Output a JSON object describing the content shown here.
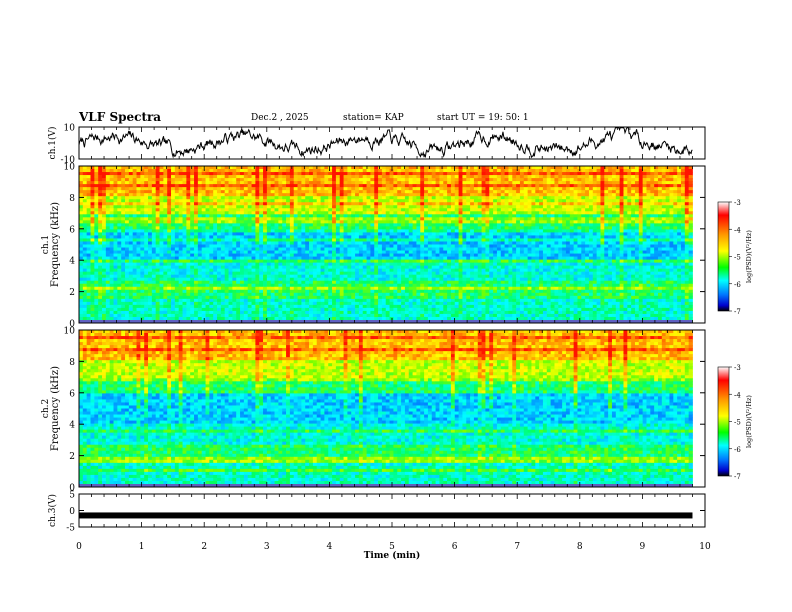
{
  "header": {
    "title": "VLF Spectra",
    "date": "Dec.2 , 2025",
    "station": "station= KAP",
    "start": "start  UT =   19: 50: 1"
  },
  "colorbar": {
    "label": "log(PSD)(V²/Hz)",
    "ticks": [
      "-3",
      "-4",
      "-5",
      "-6",
      "-7"
    ],
    "stops": [
      "#ff0000",
      "#ff8800",
      "#ffff00",
      "#00ff00",
      "#00ffff",
      "#0088ff",
      "#0000ff",
      "#000000"
    ]
  },
  "chart_data": [
    {
      "type": "line",
      "panel": "ch1-waveform",
      "ylabel": "ch.1(V)",
      "ylim": [
        -10,
        10
      ],
      "yticks": [
        "10",
        "-10"
      ],
      "xlim": [
        0,
        10
      ],
      "description_values": "noisy waveform oscillating roughly between -8 and 8 V over 0-9.8 min",
      "x_end": 9.8
    },
    {
      "type": "heatmap",
      "panel": "ch1-spectrogram",
      "ylabel": "ch.1 Frequency (kHz)",
      "ylim": [
        0,
        10
      ],
      "yticks": [
        "0",
        "2",
        "4",
        "6",
        "8",
        "10"
      ],
      "xlim": [
        0,
        10
      ],
      "x_end": 9.8,
      "clim": [
        -7,
        -3
      ],
      "seed": 11
    },
    {
      "type": "heatmap",
      "panel": "ch2-spectrogram",
      "ylabel": "ch.2 Frequency (kHz)",
      "ylim": [
        0,
        10
      ],
      "yticks": [
        "0",
        "2",
        "4",
        "6",
        "8",
        "10"
      ],
      "xlim": [
        0,
        10
      ],
      "x_end": 9.8,
      "clim": [
        -7,
        -3
      ],
      "seed": 29
    },
    {
      "type": "line",
      "panel": "ch3-waveform",
      "ylabel": "ch.3(V)",
      "ylim": [
        -5,
        5
      ],
      "yticks": [
        "5",
        "0",
        "-5"
      ],
      "xlim": [
        0,
        10
      ],
      "x_end": 9.8,
      "constant_value": -1.5
    }
  ],
  "xaxis": {
    "label": "Time (min)",
    "ticks": [
      "0",
      "1",
      "2",
      "3",
      "4",
      "5",
      "6",
      "7",
      "8",
      "9",
      "10"
    ]
  }
}
